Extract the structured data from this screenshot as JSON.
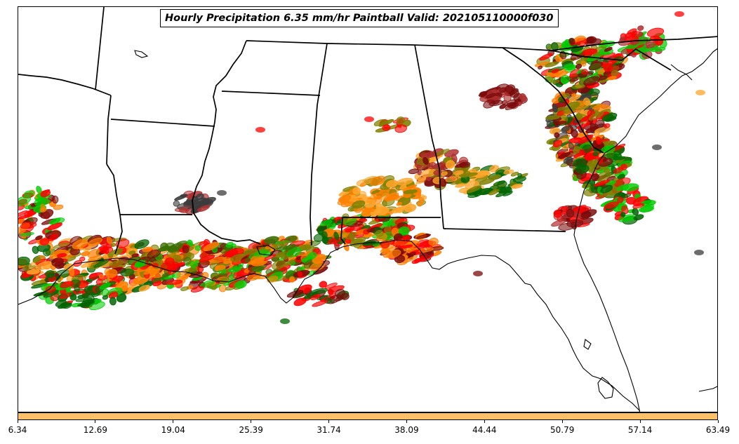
{
  "title": "Hourly Precipitation 6.35 mm/hr Paintball Valid: 202105110000f030",
  "colors": {
    "colorbar_fill": "#fcc168",
    "map_lines": "#000000",
    "paintball_palette": [
      "#7a0a0a",
      "#ff0000",
      "#ff7f00",
      "#ffa52a",
      "#808000",
      "#006400",
      "#00cc00",
      "#3a6f00",
      "#3c3c3c",
      "#b03030"
    ]
  },
  "colorbar": {
    "ticks": [
      "6.34",
      "12.69",
      "19.04",
      "25.39",
      "31.74",
      "38.09",
      "44.44",
      "50.79",
      "57.14",
      "63.49"
    ]
  }
}
